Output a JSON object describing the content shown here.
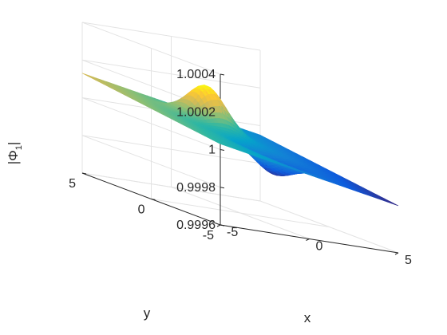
{
  "chart_data": {
    "type": "surface",
    "title": "",
    "xlabel": "x",
    "ylabel": "y",
    "zlabel": "|Φ₁|",
    "zlabel_parts": {
      "bars_open": "|",
      "symbol": "Φ",
      "subscript": "1",
      "bars_close": "|"
    },
    "xlim": [
      -5,
      5
    ],
    "ylim": [
      -5,
      5
    ],
    "zlim": [
      0.9996,
      1.0004
    ],
    "xticks": [
      "-5",
      "0",
      "5"
    ],
    "yticks": [
      "-5",
      "0",
      "5"
    ],
    "zticks": [
      "0.9996",
      "0.9998",
      "1",
      "1.0002",
      "1.0004"
    ],
    "grid": true,
    "colormap": "parula",
    "colors": [
      "#352a87",
      "#0f5cdd",
      "#1481d6",
      "#06a4ca",
      "#2eb7a4",
      "#87bf77",
      "#d1bb59",
      "#fec832",
      "#f9fb0e"
    ],
    "base_level": 0.99999,
    "features": [
      {
        "kind": "peak",
        "x": -0.3,
        "y": 2.0,
        "height": 0.0002
      },
      {
        "kind": "dip",
        "x": 0.3,
        "y": -2.0,
        "height": -0.0001
      }
    ]
  }
}
